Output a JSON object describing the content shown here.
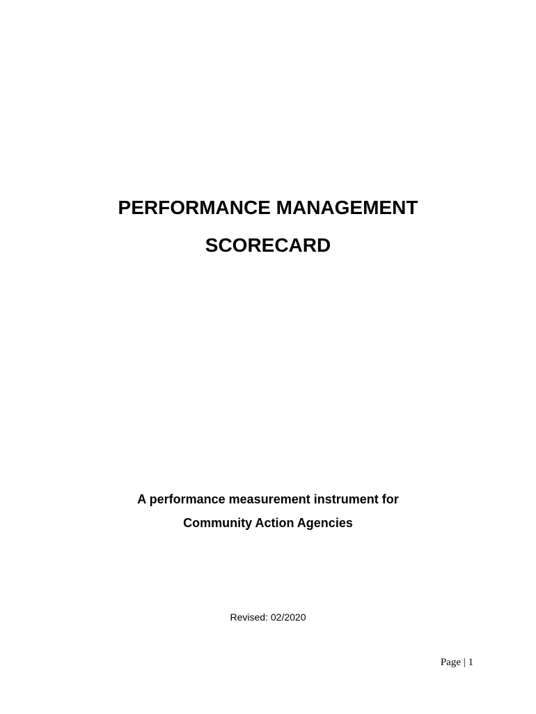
{
  "title_line1": "PERFORMANCE MANAGEMENT",
  "title_line2": "SCORECARD",
  "subtitle_line1": "A performance measurement instrument for",
  "subtitle_line2": "Community Action Agencies",
  "revised": "Revised: 02/2020",
  "page_number": "Page | 1"
}
